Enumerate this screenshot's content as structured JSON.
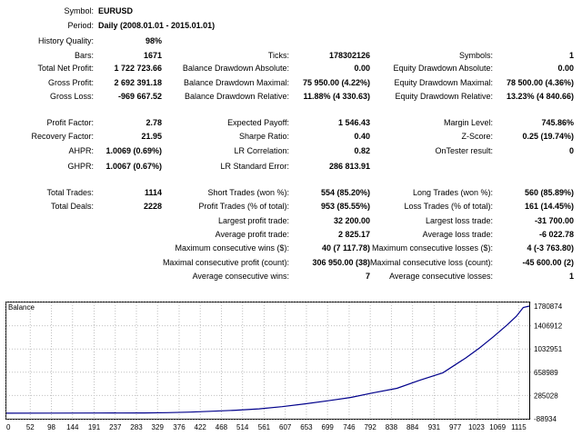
{
  "report": {
    "symbol_label": "Symbol:",
    "symbol": "EURUSD",
    "period_label": "Period:",
    "period": "Daily (2008.01.01 - 2015.01.01)",
    "history_quality_label": "History Quality:",
    "history_quality": "98%",
    "bars_label": "Bars:",
    "bars": "1671",
    "ticks_label": "Ticks:",
    "ticks": "178302126",
    "symbols_label": "Symbols:",
    "symbols": "1",
    "net_profit_label": "Total Net Profit:",
    "net_profit": "1 722 723.66",
    "bal_dd_abs_label": "Balance Drawdown Absolute:",
    "bal_dd_abs": "0.00",
    "eq_dd_abs_label": "Equity Drawdown Absolute:",
    "eq_dd_abs": "0.00",
    "gross_profit_label": "Gross Profit:",
    "gross_profit": "2 692 391.18",
    "bal_dd_max_label": "Balance Drawdown Maximal:",
    "bal_dd_max": "75 950.00 (4.22%)",
    "eq_dd_max_label": "Equity Drawdown Maximal:",
    "eq_dd_max": "78 500.00 (4.36%)",
    "gross_loss_label": "Gross Loss:",
    "gross_loss": "-969 667.52",
    "bal_dd_rel_label": "Balance Drawdown Relative:",
    "bal_dd_rel": "11.88% (4 330.63)",
    "eq_dd_rel_label": "Equity Drawdown Relative:",
    "eq_dd_rel": "13.23% (4 840.66)",
    "profit_factor_label": "Profit Factor:",
    "profit_factor": "2.78",
    "expected_payoff_label": "Expected Payoff:",
    "expected_payoff": "1 546.43",
    "margin_level_label": "Margin Level:",
    "margin_level": "745.86%",
    "recovery_factor_label": "Recovery Factor:",
    "recovery_factor": "21.95",
    "sharpe_label": "Sharpe Ratio:",
    "sharpe": "0.40",
    "zscore_label": "Z-Score:",
    "zscore": "0.25 (19.74%)",
    "ahpr_label": "AHPR:",
    "ahpr": "1.0069 (0.69%)",
    "lr_corr_label": "LR Correlation:",
    "lr_corr": "0.82",
    "ontester_label": "OnTester result:",
    "ontester": "0",
    "ghpr_label": "GHPR:",
    "ghpr": "1.0067 (0.67%)",
    "lr_err_label": "LR Standard Error:",
    "lr_err": "286 813.91",
    "total_trades_label": "Total Trades:",
    "total_trades": "1114",
    "short_trades_label": "Short Trades (won %):",
    "short_trades": "554 (85.20%)",
    "long_trades_label": "Long Trades (won %):",
    "long_trades": "560 (85.89%)",
    "total_deals_label": "Total Deals:",
    "total_deals": "2228",
    "profit_trades_label": "Profit Trades (% of total):",
    "profit_trades": "953 (85.55%)",
    "loss_trades_label": "Loss Trades (% of total):",
    "loss_trades": "161 (14.45%)",
    "largest_profit_label": "Largest profit trade:",
    "largest_profit": "32 200.00",
    "largest_loss_label": "Largest loss trade:",
    "largest_loss": "-31 700.00",
    "avg_profit_label": "Average profit trade:",
    "avg_profit": "2 825.17",
    "avg_loss_label": "Average loss trade:",
    "avg_loss": "-6 022.78",
    "max_cons_wins_label": "Maximum consecutive wins ($):",
    "max_cons_wins": "40 (7 117.78)",
    "max_cons_losses_label": "Maximum consecutive losses ($):",
    "max_cons_losses": "4 (-3 763.80)",
    "maximal_cons_profit_label": "Maximal consecutive profit (count):",
    "maximal_cons_profit": "306 950.00 (38)",
    "maximal_cons_loss_label": "Maximal consecutive loss (count):",
    "maximal_cons_loss": "-45 600.00 (2)",
    "avg_cons_wins_label": "Average consecutive wins:",
    "avg_cons_wins": "7",
    "avg_cons_losses_label": "Average consecutive losses:",
    "avg_cons_losses": "1"
  },
  "chart_data": {
    "type": "line",
    "title": "Balance",
    "xlabel": "",
    "ylabel": "",
    "x_ticks": [
      0,
      52,
      98,
      144,
      191,
      237,
      283,
      329,
      376,
      422,
      468,
      514,
      561,
      607,
      653,
      699,
      746,
      792,
      838,
      884,
      931,
      977,
      1023,
      1069,
      1115
    ],
    "y_ticks": [
      -88934,
      285028,
      658989,
      1032951,
      1406912,
      1780874
    ],
    "xlim": [
      0,
      1138
    ],
    "ylim": [
      -88934,
      1780874
    ],
    "grid": true,
    "series": [
      {
        "color": "#00008b",
        "x": [
          0,
          100,
          200,
          300,
          350,
          400,
          450,
          500,
          550,
          600,
          650,
          700,
          750,
          800,
          850,
          900,
          950,
          1000,
          1030,
          1060,
          1090,
          1110,
          1125,
          1138
        ],
        "y": [
          0,
          1000,
          3000,
          5000,
          9000,
          18000,
          32000,
          48000,
          70000,
          105000,
          150000,
          200000,
          255000,
          330000,
          400000,
          530000,
          650000,
          890000,
          1050000,
          1230000,
          1420000,
          1560000,
          1700000,
          1722724
        ]
      }
    ],
    "colors": {
      "line": "#00008b",
      "grid": "#c0c0c0",
      "border": "#000000"
    }
  }
}
